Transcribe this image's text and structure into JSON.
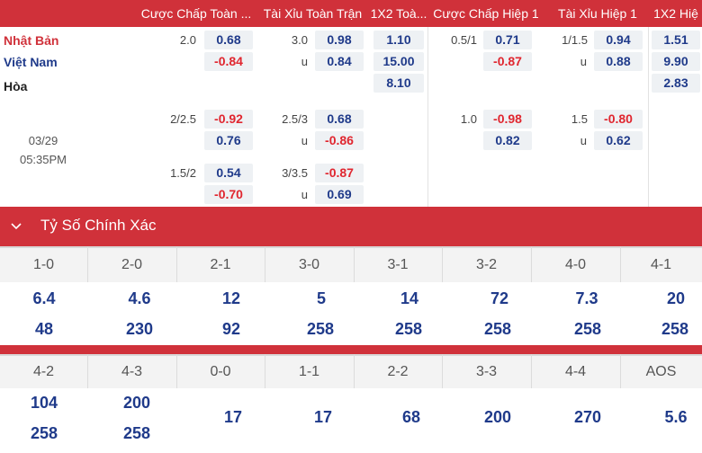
{
  "header": {
    "columns": [
      "Cược Chấp Toàn ...",
      "Tài Xỉu Toàn Trận",
      "1X2 Toà...",
      "Cược Chấp Hiệp 1",
      "Tài Xỉu Hiệp 1",
      "1X2 Hiệ"
    ]
  },
  "teams": {
    "home": "Nhật Bản",
    "away": "Việt Nam",
    "draw": "Hòa"
  },
  "match": {
    "date": "03/29",
    "time": "05:35PM"
  },
  "odds": {
    "r1": {
      "hcp_line": "2.0",
      "hcp_home": "0.68",
      "hcp_away": "-0.84",
      "ou_line": "3.0",
      "ou_over": "0.98",
      "ou_u": "u",
      "ou_under": "0.84",
      "x_home": "1.10",
      "x_away": "15.00",
      "x_draw": "8.10",
      "h1_line": "0.5/1",
      "h1_home": "0.71",
      "h1_away": "-0.87",
      "h1ou_line": "1/1.5",
      "h1ou_over": "0.94",
      "h1ou_u": "u",
      "h1ou_under": "0.88",
      "h1x_home": "1.51",
      "h1x_away": "9.90",
      "h1x_draw": "2.83"
    },
    "r2": {
      "hcp_line": "2/2.5",
      "hcp_home": "-0.92",
      "hcp_away": "0.76",
      "ou_line": "2.5/3",
      "ou_over": "0.68",
      "ou_u": "u",
      "ou_under": "-0.86",
      "h1_line": "1.0",
      "h1_home": "-0.98",
      "h1_away": "0.82",
      "h1ou_line": "1.5",
      "h1ou_over": "-0.80",
      "h1ou_u": "u",
      "h1ou_under": "0.62"
    },
    "r3": {
      "hcp_line": "1.5/2",
      "hcp_home": "0.54",
      "hcp_away": "-0.70",
      "ou_line": "3/3.5",
      "ou_over": "-0.87",
      "ou_u": "u",
      "ou_under": "0.69"
    }
  },
  "correct_score": {
    "title": "Tỷ Số Chính Xác",
    "row1": {
      "scores": [
        "1-0",
        "2-0",
        "2-1",
        "3-0",
        "3-1",
        "3-2",
        "4-0",
        "4-1"
      ],
      "odds_a": [
        "6.4",
        "4.6",
        "12",
        "5",
        "14",
        "72",
        "7.3",
        "20"
      ],
      "odds_b": [
        "48",
        "230",
        "92",
        "258",
        "258",
        "258",
        "258",
        "258"
      ]
    },
    "row2": {
      "scores": [
        "4-2",
        "4-3",
        "0-0",
        "1-1",
        "2-2",
        "3-3",
        "4-4",
        "AOS"
      ],
      "odds_a": [
        "104",
        "200",
        "17",
        "17",
        "68",
        "200",
        "270",
        "5.6"
      ],
      "odds_b": [
        "258",
        "258"
      ]
    }
  }
}
